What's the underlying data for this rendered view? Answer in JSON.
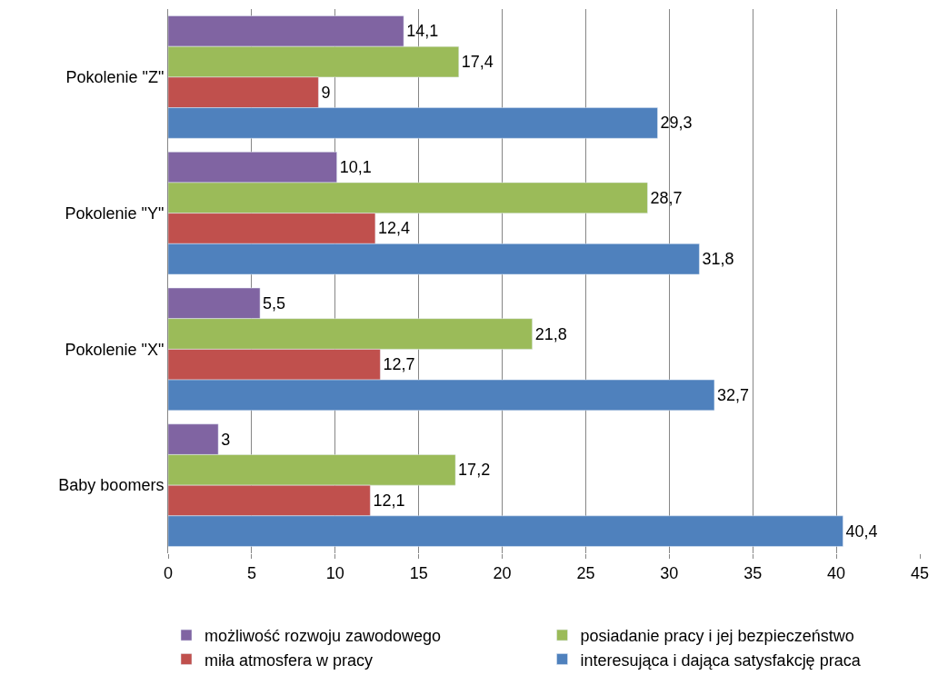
{
  "chart_data": {
    "type": "bar",
    "orientation": "horizontal",
    "categories": [
      "Pokolenie \"Z\"",
      "Pokolenie \"Y\"",
      "Pokolenie \"X\"",
      "Baby boomers"
    ],
    "series": [
      {
        "name": "możliwość rozwoju zawodowego",
        "color": "#8064a2",
        "values": [
          14.1,
          10.1,
          5.5,
          3
        ],
        "value_labels": [
          "14,1",
          "10,1",
          "5,5",
          "3"
        ]
      },
      {
        "name": "posiadanie pracy i jej bezpieczeństwo",
        "color": "#9bbb59",
        "values": [
          17.4,
          28.7,
          21.8,
          17.2
        ],
        "value_labels": [
          "17,4",
          "28,7",
          "21,8",
          "17,2"
        ]
      },
      {
        "name": "miła atmosfera w pracy",
        "color": "#c0504d",
        "values": [
          9,
          12.4,
          12.7,
          12.1
        ],
        "value_labels": [
          "9",
          "12,4",
          "12,7",
          "12,1"
        ]
      },
      {
        "name": "interesująca i dająca satysfakcję praca",
        "color": "#4f81bd",
        "values": [
          29.3,
          31.8,
          32.7,
          40.4
        ],
        "value_labels": [
          "29,3",
          "31,8",
          "32,7",
          "40,4"
        ]
      }
    ],
    "xlim": [
      0,
      45
    ],
    "xticks": [
      0,
      5,
      10,
      15,
      20,
      25,
      30,
      35,
      40,
      45
    ],
    "grid": "x",
    "legend": "bottom"
  }
}
